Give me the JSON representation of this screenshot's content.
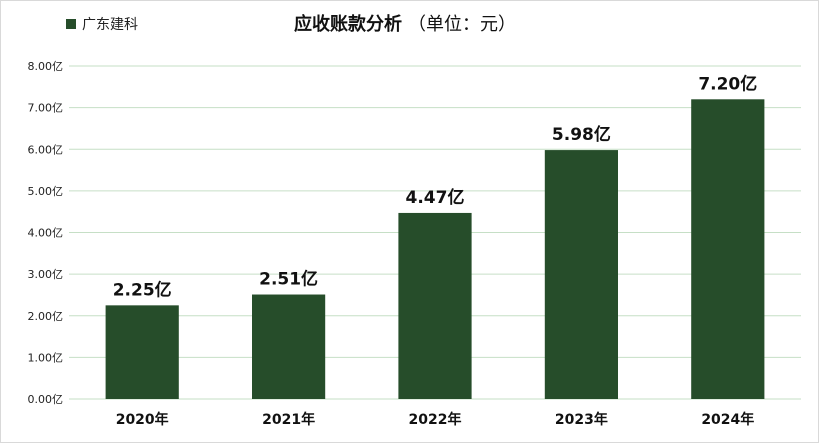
{
  "legend_label": "广东建科",
  "title_main": "应收账款分析",
  "title_sub": "（单位：元）",
  "chart_data": {
    "type": "bar",
    "title": "应收账款分析（单位：元）",
    "categories": [
      "2020年",
      "2021年",
      "2022年",
      "2023年",
      "2024年"
    ],
    "series": [
      {
        "name": "广东建科",
        "values": [
          2.25,
          2.51,
          4.47,
          5.98,
          7.2
        ],
        "data_labels": [
          "2.25亿",
          "2.51亿",
          "4.47亿",
          "5.98亿",
          "7.20亿"
        ],
        "color": "#264d2a"
      }
    ],
    "ylim": [
      0,
      8
    ],
    "y_ticks": [
      0,
      1,
      2,
      3,
      4,
      5,
      6,
      7,
      8
    ],
    "y_tick_labels": [
      "0.00亿",
      "1.00亿",
      "2.00亿",
      "3.00亿",
      "4.00亿",
      "5.00亿",
      "6.00亿",
      "7.00亿",
      "8.00亿"
    ],
    "gridlines": true,
    "gridline_color": "#c6dfc6",
    "legend_position": "top-left"
  }
}
